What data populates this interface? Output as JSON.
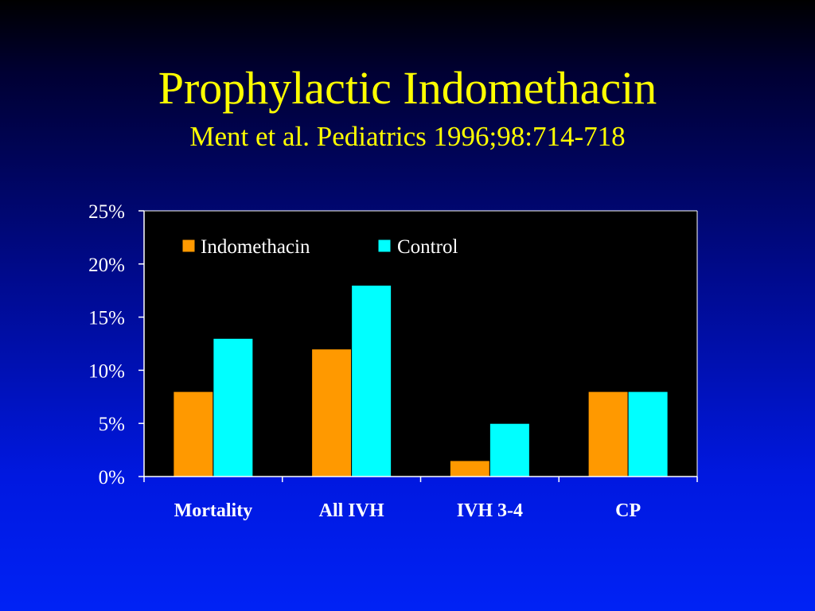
{
  "slide": {
    "title": "Prophylactic Indomethacin",
    "subtitle": "Ment et al. Pediatrics 1996;98:714-718"
  },
  "colors": {
    "indomethacin": "#ff9900",
    "control": "#00ffff",
    "title": "#ffff00",
    "plot_background": "#000000",
    "axis_text": "#ffffff"
  },
  "chart_data": {
    "type": "bar",
    "categories": [
      "Mortality",
      "All IVH",
      "IVH 3-4",
      "CP"
    ],
    "series": [
      {
        "name": "Indomethacin",
        "values": [
          8,
          12,
          1.5,
          8
        ]
      },
      {
        "name": "Control",
        "values": [
          13,
          18,
          5,
          8
        ]
      }
    ],
    "yticks": [
      "0%",
      "5%",
      "10%",
      "15%",
      "20%",
      "25%"
    ],
    "ylim": [
      0,
      25
    ],
    "grid": false,
    "legend_position": "top-left inside plot"
  }
}
